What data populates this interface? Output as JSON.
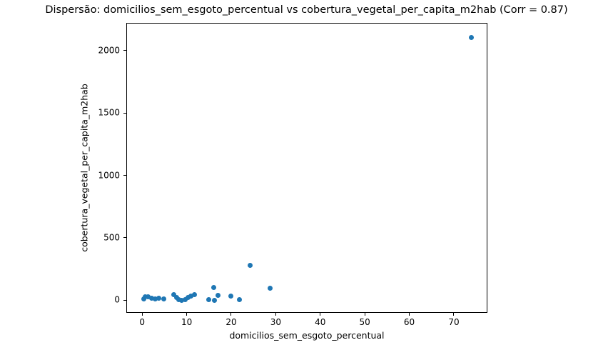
{
  "chart_data": {
    "type": "scatter",
    "title": "Dispersão: domicilios_sem_esgoto_percentual vs cobertura_vegetal_per_capita_m2hab (Corr = 0.87)",
    "xlabel": "domicilios_sem_esgoto_percentual",
    "ylabel": "cobertura_vegetal_per_capita_m2hab",
    "correlation": 0.87,
    "marker_color": "#1f77b4",
    "axis_color": "#000000",
    "background_color": "#ffffff",
    "grid": false,
    "legend_position": "none",
    "xlim": [
      -3.4,
      77.7
    ],
    "ylim": [
      -107,
      2217
    ],
    "xticks": [
      0,
      10,
      20,
      30,
      40,
      50,
      60,
      70
    ],
    "yticks": [
      0,
      500,
      1000,
      1500,
      2000
    ],
    "points": [
      [
        0.3,
        10
      ],
      [
        0.7,
        25
      ],
      [
        1.4,
        30
      ],
      [
        2.1,
        15
      ],
      [
        2.9,
        8
      ],
      [
        3.8,
        14
      ],
      [
        4.9,
        10
      ],
      [
        7.1,
        44
      ],
      [
        7.7,
        21
      ],
      [
        8.2,
        2
      ],
      [
        8.9,
        0
      ],
      [
        9.6,
        6
      ],
      [
        10.3,
        21
      ],
      [
        11.0,
        36
      ],
      [
        11.7,
        46
      ],
      [
        14.9,
        6
      ],
      [
        16.0,
        100
      ],
      [
        16.3,
        0
      ],
      [
        17.1,
        38
      ],
      [
        20.0,
        34
      ],
      [
        21.8,
        6
      ],
      [
        24.3,
        280
      ],
      [
        28.7,
        95
      ],
      [
        74.0,
        2105
      ]
    ]
  }
}
